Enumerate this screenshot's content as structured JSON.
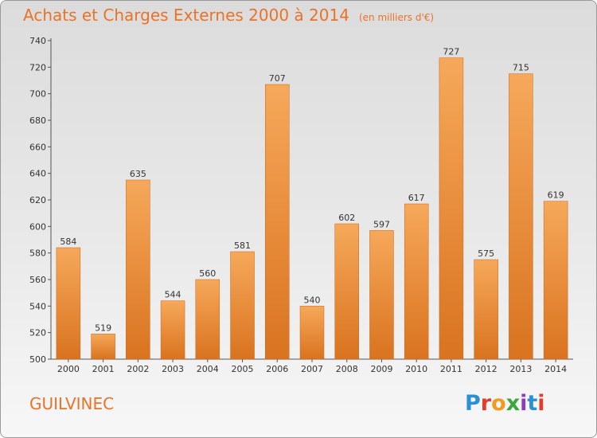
{
  "header": {
    "title": "Achats et Charges Externes 2000 à 2014",
    "unit": "(en milliers d'€)"
  },
  "footer": {
    "city": "GUILVINEC",
    "logo_letters": [
      "P",
      "r",
      "o",
      "x",
      "i",
      "t",
      "i"
    ],
    "logo_colors": [
      "#2b8fd6",
      "#e23c2e",
      "#f29a1f",
      "#3aa640",
      "#8a3fb8",
      "#2b8fd6",
      "#e23c2e"
    ]
  },
  "colors": {
    "bar_light": "#f6a85a",
    "bar_dark": "#d9731f",
    "accent": "#e8732a"
  },
  "chart_data": {
    "type": "bar",
    "title": "Achats et Charges Externes 2000 à 2014",
    "subtitle": "(en milliers d'€)",
    "categories": [
      "2000",
      "2001",
      "2002",
      "2003",
      "2004",
      "2005",
      "2006",
      "2007",
      "2008",
      "2009",
      "2010",
      "2011",
      "2012",
      "2013",
      "2014"
    ],
    "values": [
      584,
      519,
      635,
      544,
      560,
      581,
      707,
      540,
      602,
      597,
      617,
      727,
      575,
      715,
      619
    ],
    "ylim": [
      500,
      740
    ],
    "yticks": [
      500,
      520,
      540,
      560,
      580,
      600,
      620,
      640,
      660,
      680,
      700,
      720,
      740
    ],
    "grid": false,
    "data_labels": true
  }
}
